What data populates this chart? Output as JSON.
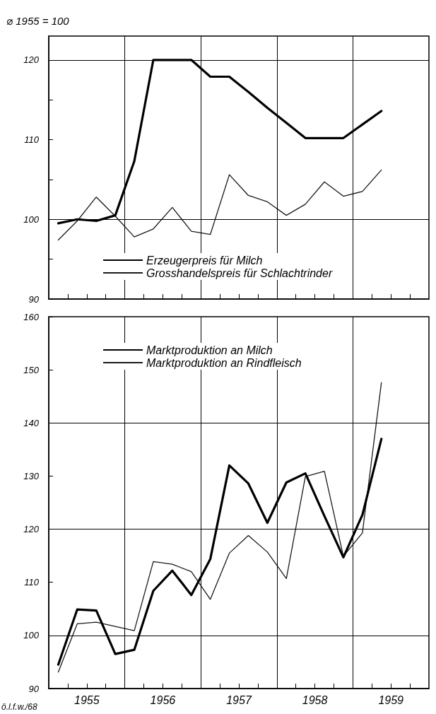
{
  "chart_data": [
    {
      "type": "line",
      "ylabel": "⌀ 1955 = 100",
      "x": [
        1955.125,
        1955.375,
        1955.625,
        1955.875,
        1956.125,
        1956.375,
        1956.625,
        1956.875,
        1957.125,
        1957.375,
        1957.625,
        1957.875,
        1958.125,
        1958.375,
        1958.625,
        1958.875,
        1959.125,
        1959.375
      ],
      "series": [
        {
          "name": "Erzeugerpreis für Milch",
          "color": "#000000",
          "values": [
            99.5,
            100.0,
            99.8,
            100.5,
            107.3,
            120.0,
            120.0,
            120.0,
            117.9,
            117.9,
            116.0,
            114.0,
            112.1,
            110.2,
            110.2,
            110.2,
            111.9,
            113.6
          ]
        },
        {
          "name": "Grosshandelspreis für Schlachtrinder",
          "color": "#1a1a1a",
          "values": [
            97.4,
            99.8,
            102.8,
            100.4,
            97.8,
            98.8,
            101.5,
            98.5,
            98.1,
            105.6,
            103.0,
            102.2,
            100.5,
            101.9,
            104.7,
            102.9,
            103.5,
            106.2
          ]
        }
      ],
      "xlim": [
        1955,
        1960
      ],
      "xticks": [
        {
          "value": 1955.25,
          "label": null
        },
        {
          "value": 1955.5,
          "label": null
        },
        {
          "value": 1955.75,
          "label": null
        },
        {
          "value": 1956,
          "label": null
        },
        {
          "value": 1956.25,
          "label": null
        },
        {
          "value": 1956.5,
          "label": null
        },
        {
          "value": 1956.75,
          "label": null
        },
        {
          "value": 1957,
          "label": null
        },
        {
          "value": 1957.25,
          "label": null
        },
        {
          "value": 1957.5,
          "label": null
        },
        {
          "value": 1957.75,
          "label": null
        },
        {
          "value": 1958,
          "label": null
        },
        {
          "value": 1958.25,
          "label": null
        },
        {
          "value": 1958.5,
          "label": null
        },
        {
          "value": 1958.75,
          "label": null
        },
        {
          "value": 1959,
          "label": null
        },
        {
          "value": 1959.25,
          "label": null
        },
        {
          "value": 1959.5,
          "label": null
        },
        {
          "value": 1959.75,
          "label": null
        }
      ],
      "ylim": [
        90,
        123
      ],
      "yticks": [
        90,
        {
          "value": 95,
          "label": null
        },
        100,
        {
          "value": 105,
          "label": null
        },
        110,
        {
          "value": 115,
          "label": null
        },
        120
      ],
      "tick_labels": "y",
      "ref_lines": [
        {
          "axis": "x",
          "value": 1956,
          "label": null
        },
        {
          "axis": "x",
          "value": 1957,
          "label": null
        },
        {
          "axis": "x",
          "value": 1958,
          "label": null
        },
        {
          "axis": "x",
          "value": 1959,
          "label": null
        },
        {
          "axis": "y",
          "value": 100,
          "label": null
        },
        {
          "axis": "y",
          "value": 120,
          "label": null
        }
      ],
      "legend": "bottom",
      "marker": "none",
      "line_style": "solid",
      "grid": false
    },
    {
      "type": "line",
      "x": [
        1955.125,
        1955.375,
        1955.625,
        1955.875,
        1956.125,
        1956.375,
        1956.625,
        1956.875,
        1957.125,
        1957.375,
        1957.625,
        1957.875,
        1958.125,
        1958.375,
        1958.625,
        1958.875,
        1959.125,
        1959.375
      ],
      "series": [
        {
          "name": "Marktproduktion an Milch",
          "color": "#000000",
          "values": [
            94.5,
            104.9,
            104.7,
            96.5,
            97.3,
            108.4,
            112.2,
            107.6,
            114.4,
            132.0,
            128.6,
            121.2,
            128.8,
            130.5,
            122.5,
            114.7,
            122.7,
            137.0
          ]
        },
        {
          "name": "Marktproduktion an Rindfleisch",
          "color": "#1a1a1a",
          "values": [
            93.1,
            102.2,
            102.5,
            101.7,
            100.9,
            113.9,
            113.4,
            112.0,
            106.8,
            115.5,
            118.8,
            115.7,
            110.7,
            129.9,
            130.9,
            114.9,
            119.3,
            147.6
          ]
        }
      ],
      "xlim": [
        1955,
        1960
      ],
      "xticks": [
        {
          "value": 1955.25,
          "label": null
        },
        {
          "value": 1955.5,
          "label": "1955"
        },
        {
          "value": 1955.75,
          "label": null
        },
        {
          "value": 1956,
          "label": null
        },
        {
          "value": 1956.25,
          "label": null
        },
        {
          "value": 1956.5,
          "label": "1956"
        },
        {
          "value": 1956.75,
          "label": null
        },
        {
          "value": 1957,
          "label": null
        },
        {
          "value": 1957.25,
          "label": null
        },
        {
          "value": 1957.5,
          "label": "1957"
        },
        {
          "value": 1957.75,
          "label": null
        },
        {
          "value": 1958,
          "label": null
        },
        {
          "value": 1958.25,
          "label": null
        },
        {
          "value": 1958.5,
          "label": "1958"
        },
        {
          "value": 1958.75,
          "label": null
        },
        {
          "value": 1959,
          "label": null
        },
        {
          "value": 1959.25,
          "label": null
        },
        {
          "value": 1959.5,
          "label": "1959"
        },
        {
          "value": 1959.75,
          "label": null
        }
      ],
      "ylim": [
        90,
        160
      ],
      "yticks": [
        90,
        100,
        110,
        120,
        130,
        140,
        150,
        160
      ],
      "ref_lines": [
        {
          "axis": "x",
          "value": 1956,
          "label": null
        },
        {
          "axis": "x",
          "value": 1957,
          "label": null
        },
        {
          "axis": "x",
          "value": 1958,
          "label": null
        },
        {
          "axis": "x",
          "value": 1959,
          "label": null
        },
        {
          "axis": "y",
          "value": 100,
          "label": null
        },
        {
          "axis": "y",
          "value": 120,
          "label": null
        },
        {
          "axis": "y",
          "value": 140,
          "label": null
        }
      ],
      "legend": "top",
      "marker": "none",
      "line_style": "solid",
      "grid": false,
      "annotations": [
        "ö.l.f.w./68"
      ]
    }
  ]
}
